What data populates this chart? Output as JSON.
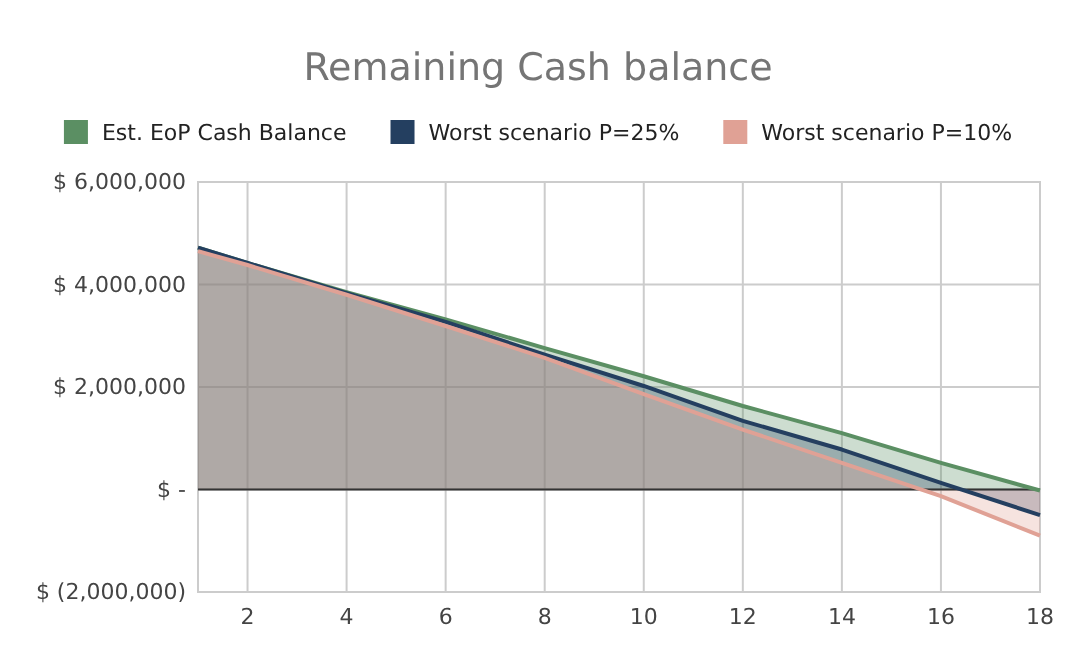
{
  "chart_data": {
    "type": "area",
    "title": "Remaining Cash balance",
    "x": [
      1,
      2,
      4,
      6,
      8,
      10,
      12,
      14,
      16,
      18
    ],
    "series": [
      {
        "name": "Est. EoP Cash Balance",
        "color": "#5b8f63",
        "values": [
          4720000,
          4420000,
          3850000,
          3320000,
          2760000,
          2210000,
          1630000,
          1100000,
          520000,
          -20000
        ]
      },
      {
        "name": "Worst scenario P=25%",
        "color": "#243f60",
        "values": [
          4720000,
          4420000,
          3830000,
          3270000,
          2630000,
          2020000,
          1340000,
          780000,
          130000,
          -500000
        ]
      },
      {
        "name": "Worst scenario P=10%",
        "color": "#e0a195",
        "values": [
          4650000,
          4380000,
          3800000,
          3190000,
          2570000,
          1860000,
          1170000,
          520000,
          -130000,
          -900000
        ]
      }
    ],
    "xlim": [
      1,
      18
    ],
    "xticks": [
      2,
      4,
      6,
      8,
      10,
      12,
      14,
      16,
      18
    ],
    "ylim": [
      -2000000,
      6000000
    ],
    "yticks": [
      {
        "value": -2000000,
        "label": "$ (2,000,000)"
      },
      {
        "value": 0,
        "label": "$ -"
      },
      {
        "value": 2000000,
        "label": "$ 2,000,000"
      },
      {
        "value": 4000000,
        "label": "$ 4,000,000"
      },
      {
        "value": 6000000,
        "label": "$ 6,000,000"
      }
    ],
    "grid": true,
    "legend": "top"
  }
}
